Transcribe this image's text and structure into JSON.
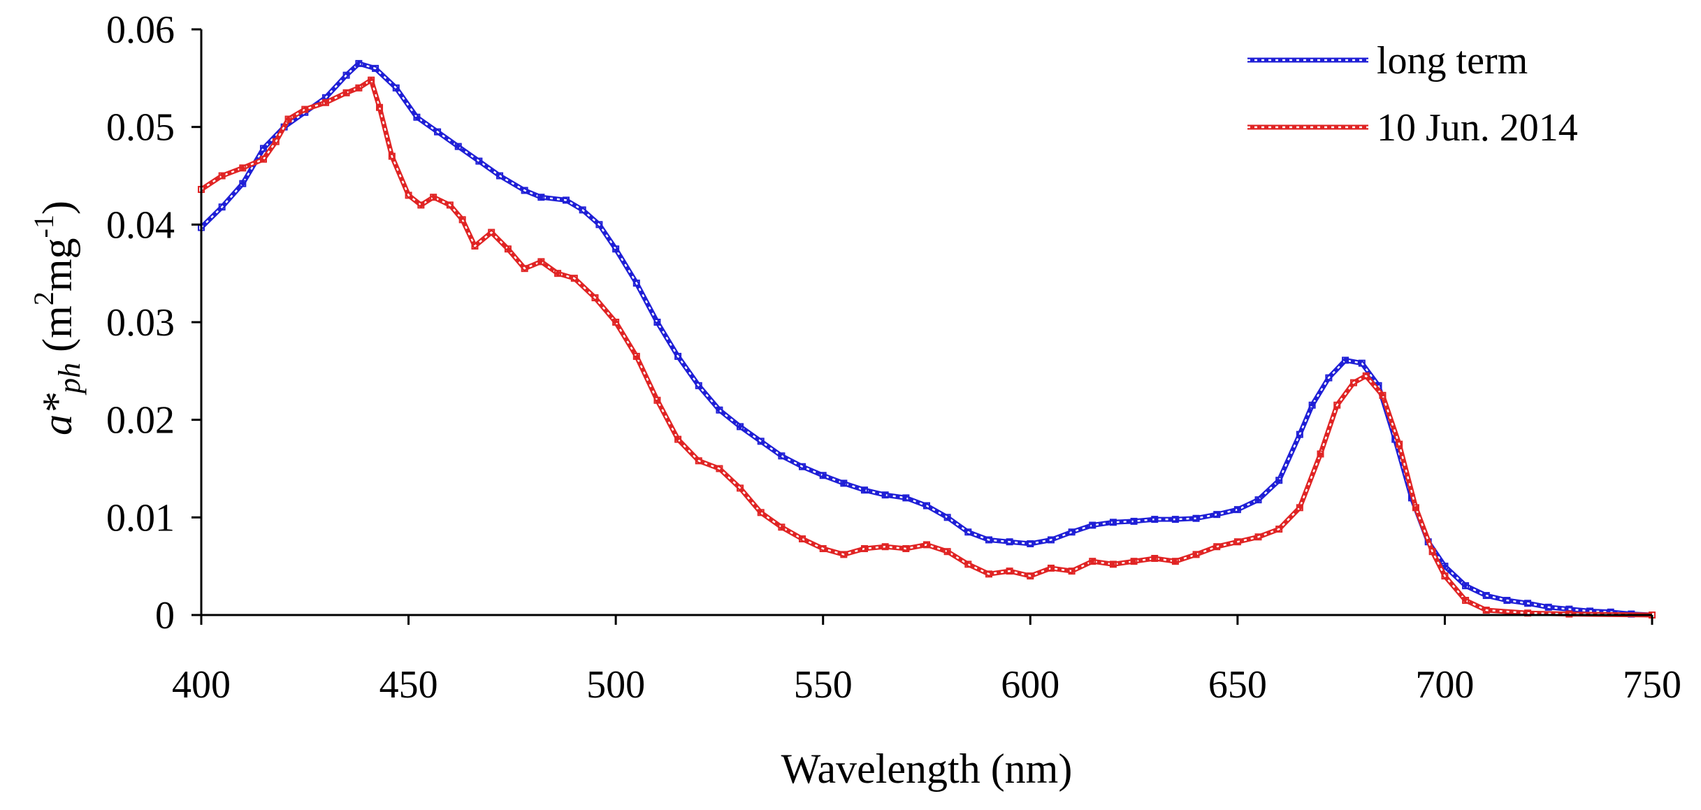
{
  "chart_data": {
    "type": "line",
    "title": "",
    "xlabel": "Wavelength (nm)",
    "ylabel": {
      "symbol": "a*",
      "subscript": "ph",
      "unit_open": " (m",
      "unit_sup1": "2",
      "unit_mid": "mg",
      "unit_sup2": "-1",
      "unit_close": ")"
    },
    "xlim": [
      400,
      750
    ],
    "ylim": [
      0,
      0.06
    ],
    "xticks": [
      "400",
      "450",
      "500",
      "550",
      "600",
      "650",
      "700",
      "750"
    ],
    "yticks": [
      "0",
      "0.01",
      "0.02",
      "0.03",
      "0.04",
      "0.05",
      "0.06"
    ],
    "grid": false,
    "legend_position": "top-right",
    "series": [
      {
        "name": "long term",
        "color": "#1f1fd6",
        "points": [
          [
            400,
            0.0397
          ],
          [
            405,
            0.0418
          ],
          [
            410,
            0.0442
          ],
          [
            415,
            0.0478
          ],
          [
            420,
            0.05
          ],
          [
            425,
            0.0515
          ],
          [
            430,
            0.053
          ],
          [
            435,
            0.0553
          ],
          [
            438,
            0.0565
          ],
          [
            442,
            0.056
          ],
          [
            447,
            0.054
          ],
          [
            452,
            0.051
          ],
          [
            457,
            0.0495
          ],
          [
            462,
            0.048
          ],
          [
            467,
            0.0465
          ],
          [
            472,
            0.045
          ],
          [
            478,
            0.0435
          ],
          [
            482,
            0.0428
          ],
          [
            488,
            0.0425
          ],
          [
            492,
            0.0415
          ],
          [
            496,
            0.04
          ],
          [
            500,
            0.0375
          ],
          [
            505,
            0.034
          ],
          [
            510,
            0.03
          ],
          [
            515,
            0.0265
          ],
          [
            520,
            0.0235
          ],
          [
            525,
            0.021
          ],
          [
            530,
            0.0193
          ],
          [
            535,
            0.0178
          ],
          [
            540,
            0.0163
          ],
          [
            545,
            0.0152
          ],
          [
            550,
            0.0143
          ],
          [
            555,
            0.0135
          ],
          [
            560,
            0.0128
          ],
          [
            565,
            0.0123
          ],
          [
            570,
            0.012
          ],
          [
            575,
            0.0112
          ],
          [
            580,
            0.01
          ],
          [
            585,
            0.0085
          ],
          [
            590,
            0.0077
          ],
          [
            595,
            0.0075
          ],
          [
            600,
            0.0073
          ],
          [
            605,
            0.0077
          ],
          [
            610,
            0.0085
          ],
          [
            615,
            0.0092
          ],
          [
            620,
            0.0095
          ],
          [
            625,
            0.0096
          ],
          [
            630,
            0.0098
          ],
          [
            635,
            0.0098
          ],
          [
            640,
            0.0099
          ],
          [
            645,
            0.0103
          ],
          [
            650,
            0.0108
          ],
          [
            655,
            0.0118
          ],
          [
            660,
            0.0138
          ],
          [
            665,
            0.0185
          ],
          [
            668,
            0.0215
          ],
          [
            672,
            0.0243
          ],
          [
            676,
            0.0261
          ],
          [
            680,
            0.0258
          ],
          [
            684,
            0.0235
          ],
          [
            688,
            0.018
          ],
          [
            692,
            0.012
          ],
          [
            696,
            0.0075
          ],
          [
            700,
            0.005
          ],
          [
            705,
            0.003
          ],
          [
            710,
            0.002
          ],
          [
            715,
            0.0015
          ],
          [
            720,
            0.0012
          ],
          [
            725,
            0.0008
          ],
          [
            730,
            0.0006
          ],
          [
            735,
            0.0004
          ],
          [
            740,
            0.0003
          ],
          [
            745,
            0.0001
          ],
          [
            750,
            0.0
          ]
        ]
      },
      {
        "name": "10 Jun. 2014",
        "color": "#e02424",
        "points": [
          [
            400,
            0.0436
          ],
          [
            405,
            0.045
          ],
          [
            410,
            0.0458
          ],
          [
            415,
            0.0467
          ],
          [
            418,
            0.0485
          ],
          [
            421,
            0.0508
          ],
          [
            425,
            0.0518
          ],
          [
            430,
            0.0525
          ],
          [
            435,
            0.0535
          ],
          [
            438,
            0.054
          ],
          [
            441,
            0.0548
          ],
          [
            443,
            0.052
          ],
          [
            446,
            0.047
          ],
          [
            450,
            0.043
          ],
          [
            453,
            0.042
          ],
          [
            456,
            0.0428
          ],
          [
            460,
            0.042
          ],
          [
            463,
            0.0405
          ],
          [
            466,
            0.0378
          ],
          [
            470,
            0.0392
          ],
          [
            474,
            0.0375
          ],
          [
            478,
            0.0355
          ],
          [
            482,
            0.0362
          ],
          [
            486,
            0.035
          ],
          [
            490,
            0.0345
          ],
          [
            495,
            0.0325
          ],
          [
            500,
            0.03
          ],
          [
            505,
            0.0265
          ],
          [
            510,
            0.022
          ],
          [
            515,
            0.018
          ],
          [
            520,
            0.0158
          ],
          [
            525,
            0.015
          ],
          [
            530,
            0.013
          ],
          [
            535,
            0.0105
          ],
          [
            540,
            0.009
          ],
          [
            545,
            0.0078
          ],
          [
            550,
            0.0068
          ],
          [
            555,
            0.0062
          ],
          [
            560,
            0.0068
          ],
          [
            565,
            0.007
          ],
          [
            570,
            0.0068
          ],
          [
            575,
            0.0072
          ],
          [
            580,
            0.0065
          ],
          [
            585,
            0.0052
          ],
          [
            590,
            0.0042
          ],
          [
            595,
            0.0045
          ],
          [
            600,
            0.004
          ],
          [
            605,
            0.0048
          ],
          [
            610,
            0.0045
          ],
          [
            615,
            0.0055
          ],
          [
            620,
            0.0052
          ],
          [
            625,
            0.0055
          ],
          [
            630,
            0.0058
          ],
          [
            635,
            0.0055
          ],
          [
            640,
            0.0062
          ],
          [
            645,
            0.007
          ],
          [
            650,
            0.0075
          ],
          [
            655,
            0.008
          ],
          [
            660,
            0.0088
          ],
          [
            665,
            0.011
          ],
          [
            670,
            0.0165
          ],
          [
            674,
            0.0215
          ],
          [
            678,
            0.0238
          ],
          [
            681,
            0.0245
          ],
          [
            685,
            0.0225
          ],
          [
            689,
            0.0175
          ],
          [
            693,
            0.011
          ],
          [
            697,
            0.0065
          ],
          [
            700,
            0.004
          ],
          [
            705,
            0.0015
          ],
          [
            710,
            0.0005
          ],
          [
            720,
            0.0002
          ],
          [
            730,
            0.0001
          ],
          [
            750,
            0.0
          ]
        ]
      }
    ]
  }
}
